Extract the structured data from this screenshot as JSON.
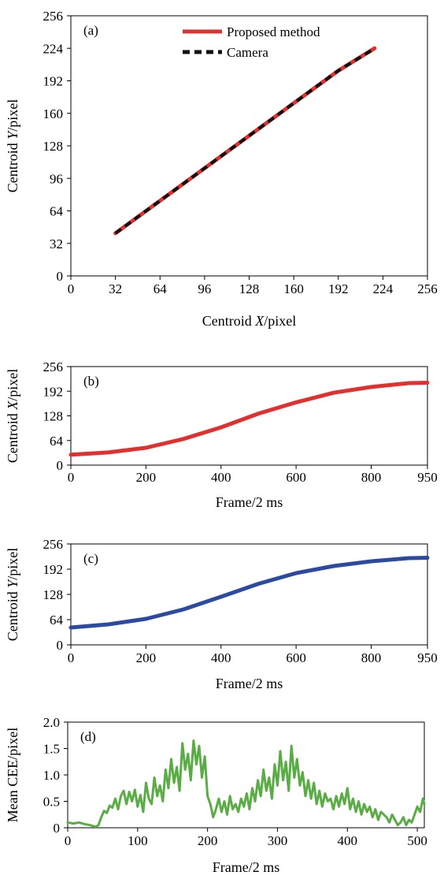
{
  "chart_data": [
    {
      "type": "line",
      "panel_label": "(a)",
      "xlabel": {
        "pre": "Centroid ",
        "var": "X",
        "post": "/pixel"
      },
      "ylabel": {
        "pre": "Centroid ",
        "var": "Y",
        "post": "/pixel"
      },
      "xlim": [
        0,
        256
      ],
      "ylim": [
        0,
        256
      ],
      "xticks": [
        0,
        32,
        64,
        96,
        128,
        160,
        192,
        224,
        256
      ],
      "yticks": [
        0,
        32,
        64,
        96,
        128,
        160,
        192,
        224,
        256
      ],
      "legend_position": "top",
      "series": [
        {
          "name": "Proposed method",
          "color": "#e03030",
          "style": "solid",
          "x": [
            32,
            64,
            96,
            128,
            160,
            192,
            218
          ],
          "y": [
            42,
            74,
            106,
            138,
            170,
            202,
            224
          ]
        },
        {
          "name": "Camera",
          "color": "#111111",
          "style": "dashed",
          "x": [
            32,
            64,
            96,
            128,
            160,
            192,
            216
          ],
          "y": [
            42,
            74,
            106,
            138,
            170,
            202,
            222
          ]
        }
      ]
    },
    {
      "type": "line",
      "panel_label": "(b)",
      "xlabel": {
        "pre": "Frame/2 ms",
        "var": "",
        "post": ""
      },
      "ylabel": {
        "pre": "Centroid ",
        "var": "X",
        "post": "/pixel"
      },
      "xlim": [
        0,
        950
      ],
      "ylim": [
        0,
        256
      ],
      "xticks": [
        0,
        200,
        400,
        600,
        800,
        950
      ],
      "yticks": [
        0,
        64,
        128,
        192,
        256
      ],
      "series": [
        {
          "color": "#e03030",
          "x": [
            0,
            100,
            200,
            300,
            400,
            500,
            600,
            700,
            800,
            900,
            950
          ],
          "y": [
            27,
            33,
            45,
            68,
            98,
            134,
            163,
            188,
            203,
            213,
            214
          ]
        }
      ]
    },
    {
      "type": "line",
      "panel_label": "(c)",
      "xlabel": {
        "pre": "Frame/2 ms",
        "var": "",
        "post": ""
      },
      "ylabel": {
        "pre": "Centroid ",
        "var": "Y",
        "post": "/pixel"
      },
      "xlim": [
        0,
        950
      ],
      "ylim": [
        0,
        256
      ],
      "xticks": [
        0,
        200,
        400,
        600,
        800,
        950
      ],
      "yticks": [
        0,
        64,
        128,
        192,
        256
      ],
      "series": [
        {
          "color": "#2c4aa0",
          "x": [
            0,
            100,
            200,
            300,
            400,
            500,
            600,
            700,
            800,
            900,
            950
          ],
          "y": [
            44,
            52,
            66,
            90,
            122,
            155,
            182,
            200,
            212,
            220,
            221
          ]
        }
      ]
    },
    {
      "type": "line",
      "panel_label": "(d)",
      "xlabel": {
        "pre": "Frame/2 ms",
        "var": "",
        "post": ""
      },
      "ylabel": {
        "pre": "Mean CEE/pixel",
        "var": "",
        "post": ""
      },
      "xlim": [
        0,
        510
      ],
      "ylim": [
        0,
        2.0
      ],
      "xticks": [
        0,
        100,
        200,
        300,
        400,
        500
      ],
      "ytick_labels": [
        "0",
        "0.5",
        "1.0",
        "1.5",
        "2.0"
      ],
      "yticks": [
        0,
        0.5,
        1.0,
        1.5,
        2.0
      ],
      "series": [
        {
          "color": "#5aac44",
          "x": [
            0,
            8,
            16,
            24,
            32,
            40,
            44,
            48,
            52,
            56,
            60,
            64,
            68,
            72,
            76,
            80,
            84,
            88,
            92,
            96,
            100,
            104,
            108,
            112,
            116,
            120,
            124,
            128,
            132,
            136,
            140,
            144,
            148,
            152,
            156,
            160,
            164,
            168,
            172,
            176,
            180,
            184,
            188,
            192,
            196,
            200,
            204,
            208,
            212,
            216,
            220,
            224,
            228,
            232,
            236,
            240,
            244,
            248,
            252,
            256,
            260,
            264,
            268,
            272,
            276,
            280,
            284,
            288,
            292,
            296,
            300,
            304,
            308,
            312,
            316,
            320,
            324,
            328,
            332,
            336,
            340,
            344,
            348,
            352,
            356,
            360,
            364,
            368,
            372,
            376,
            380,
            384,
            388,
            392,
            396,
            400,
            404,
            408,
            412,
            416,
            420,
            424,
            428,
            432,
            436,
            440,
            444,
            448,
            452,
            456,
            460,
            464,
            468,
            472,
            476,
            480,
            484,
            488,
            492,
            496,
            500,
            504,
            508,
            510
          ],
          "y": [
            0.1,
            0.08,
            0.1,
            0.07,
            0.05,
            0.02,
            0.05,
            0.2,
            0.32,
            0.28,
            0.42,
            0.38,
            0.55,
            0.35,
            0.6,
            0.7,
            0.45,
            0.68,
            0.5,
            0.72,
            0.4,
            0.62,
            0.3,
            0.85,
            0.55,
            0.45,
            0.95,
            0.6,
            0.8,
            0.5,
            1.1,
            0.75,
            1.3,
            0.85,
            1.15,
            0.7,
            1.6,
            1.1,
            1.4,
            0.9,
            1.65,
            1.2,
            1.55,
            0.95,
            1.35,
            0.6,
            0.45,
            0.2,
            0.35,
            0.55,
            0.3,
            0.5,
            0.25,
            0.6,
            0.35,
            0.45,
            0.3,
            0.55,
            0.4,
            0.65,
            0.35,
            0.75,
            0.5,
            0.9,
            0.6,
            1.1,
            0.7,
            0.95,
            0.55,
            1.2,
            0.8,
            1.45,
            0.9,
            1.25,
            0.7,
            1.55,
            0.95,
            1.3,
            0.8,
            1.05,
            0.6,
            0.9,
            0.55,
            0.85,
            0.45,
            0.7,
            0.4,
            0.65,
            0.5,
            0.55,
            0.35,
            0.6,
            0.4,
            0.65,
            0.45,
            0.75,
            0.35,
            0.55,
            0.3,
            0.5,
            0.25,
            0.45,
            0.3,
            0.4,
            0.2,
            0.35,
            0.15,
            0.3,
            0.25,
            0.2,
            0.1,
            0.25,
            0.15,
            0.05,
            0.1,
            0.2,
            0.05,
            0.15,
            0.1,
            0.25,
            0.4,
            0.3,
            0.55,
            0.45
          ]
        }
      ]
    }
  ]
}
